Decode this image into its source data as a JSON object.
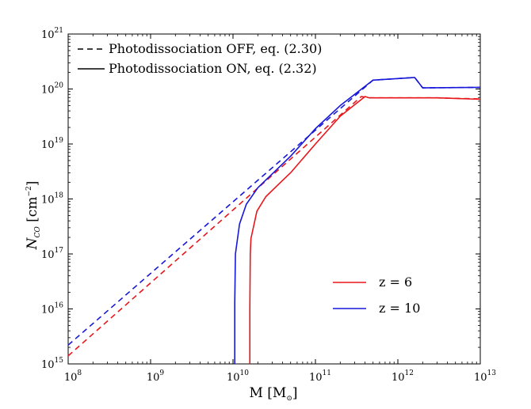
{
  "chart_data": {
    "type": "line",
    "xscale": "log",
    "yscale": "log",
    "xlim": [
      100000000.0,
      10000000000000.0
    ],
    "ylim": [
      1000000000000000.0,
      1e+21
    ],
    "xlabel": {
      "main": "M [M",
      "sub": "⊙",
      "end": "]"
    },
    "ylabel": {
      "main": "N",
      "sub": "CO",
      "end": " [cm",
      "sup": "−2",
      "close": "]"
    },
    "x_ticks": [
      {
        "base": "10",
        "exp": "8",
        "value": 100000000.0
      },
      {
        "base": "10",
        "exp": "9",
        "value": 1000000000.0
      },
      {
        "base": "10",
        "exp": "10",
        "value": 10000000000.0
      },
      {
        "base": "10",
        "exp": "11",
        "value": 100000000000.0
      },
      {
        "base": "10",
        "exp": "12",
        "value": 1000000000000.0
      },
      {
        "base": "10",
        "exp": "13",
        "value": 10000000000000.0
      }
    ],
    "y_ticks": [
      {
        "base": "10",
        "exp": "15",
        "value": 1000000000000000.0
      },
      {
        "base": "10",
        "exp": "16",
        "value": 1e+16
      },
      {
        "base": "10",
        "exp": "17",
        "value": 1e+17
      },
      {
        "base": "10",
        "exp": "18",
        "value": 1e+18
      },
      {
        "base": "10",
        "exp": "19",
        "value": 1e+19
      },
      {
        "base": "10",
        "exp": "20",
        "value": 1e+20
      },
      {
        "base": "10",
        "exp": "21",
        "value": 1e+21
      }
    ],
    "style_legend": [
      {
        "label": "Photodissociation OFF, eq. (2.30)",
        "dash": "dashed"
      },
      {
        "label": "Photodissociation ON, eq. (2.32)",
        "dash": "solid"
      }
    ],
    "color_legend": [
      {
        "label": "z = 6",
        "color": "#e8161b"
      },
      {
        "label": "z = 10",
        "color": "#1717d9"
      }
    ],
    "series": [
      {
        "name": "z = 6, Photodissociation OFF",
        "color": "#e8161b",
        "dash": "dashed",
        "x": [
          100000000.0,
          360000000000.0,
          450000000000.0,
          1000000000000.0,
          3000000000000.0,
          10000000000000.0
        ],
        "y": [
          1400000000000000.0,
          7.3e+19,
          6.9e+19,
          6.9e+19,
          6.9e+19,
          6.6e+19
        ]
      },
      {
        "name": "z = 6, Photodissociation ON",
        "color": "#e8161b",
        "dash": "solid",
        "x": [
          16000000000.0,
          16000000000.0,
          16200000000.0,
          16500000000.0,
          19500000000.0,
          25000000000.0,
          35000000000.0,
          50000000000.0,
          100000000000.0,
          200000000000.0,
          400000000000.0,
          450000000000.0,
          1000000000000.0,
          3000000000000.0,
          10000000000000.0
        ],
        "y": [
          1000000000000000.0,
          1e+16,
          1e+17,
          1.9e+17,
          6e+17,
          1.1e+18,
          1.8e+18,
          3e+18,
          1e+19,
          3.2e+19,
          7.3e+19,
          6.9e+19,
          6.9e+19,
          6.9e+19,
          6.5e+19
        ]
      },
      {
        "name": "z = 10, Photodissociation OFF",
        "color": "#1717d9",
        "dash": "dashed",
        "x": [
          100000000.0,
          500000000000.0,
          1000000000000.0,
          1600000000000.0,
          2000000000000.0,
          10000000000000.0
        ],
        "y": [
          2200000000000000.0,
          1.45e+20,
          1.55e+20,
          1.62e+20,
          1.05e+20,
          1.07e+20
        ]
      },
      {
        "name": "z = 10, Photodissociation ON",
        "color": "#1717d9",
        "dash": "solid",
        "x": [
          10500000000.0,
          10500000000.0,
          10700000000.0,
          12000000000.0,
          14500000000.0,
          20000000000.0,
          50000000000.0,
          100000000000.0,
          200000000000.0,
          500000000000.0,
          1000000000000.0,
          1600000000000.0,
          2000000000000.0,
          10000000000000.0
        ],
        "y": [
          1000000000000000.0,
          1.3e+16,
          1e+17,
          3.5e+17,
          8e+17,
          1.6e+18,
          6e+18,
          1.9e+19,
          5e+19,
          1.45e+20,
          1.55e+20,
          1.62e+20,
          1.05e+20,
          1.07e+20
        ]
      }
    ]
  }
}
